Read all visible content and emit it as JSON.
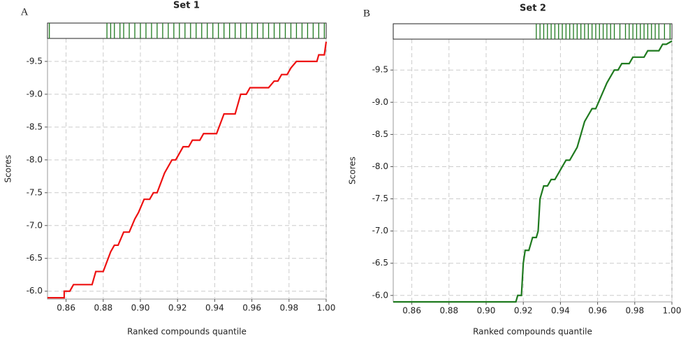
{
  "chart_data": [
    {
      "type": "line",
      "panel_label": "A",
      "title": "Set 1",
      "x_label": "Ranked compounds quantile",
      "y_label": "Scores",
      "color": "#ee1111",
      "rug_color": "#1f7a1f",
      "grid": true,
      "xlim": [
        0.85,
        1.0
      ],
      "ylim": [
        -5.88,
        -9.85
      ],
      "xticks": [
        0.86,
        0.88,
        {
          "value": 0.9,
          "label": "0.90"
        },
        0.92,
        0.94,
        0.96,
        0.98,
        {
          "value": 1,
          "label": "1.00"
        }
      ],
      "yticks": [
        {
          "value": -6,
          "label": "-6.0"
        },
        -6.5,
        {
          "value": -7,
          "label": "-7.0"
        },
        -7.5,
        {
          "value": -8,
          "label": "-8.0"
        },
        -8.5,
        {
          "value": -9,
          "label": "-9.0"
        },
        -9.5
      ],
      "x": [
        0.85,
        0.859,
        0.859,
        0.862,
        0.864,
        0.874,
        0.876,
        0.88,
        0.884,
        0.886,
        0.888,
        0.891,
        0.894,
        0.897,
        0.899,
        0.902,
        0.905,
        0.907,
        0.909,
        0.913,
        0.917,
        0.919,
        0.921,
        0.923,
        0.926,
        0.928,
        0.932,
        0.934,
        0.941,
        0.945,
        0.951,
        0.954,
        0.957,
        0.959,
        0.969,
        0.972,
        0.974,
        0.976,
        0.979,
        0.981,
        0.984,
        0.995,
        0.996,
        0.999,
        1.0
      ],
      "values": [
        -5.9,
        -5.9,
        -6.0,
        -6.0,
        -6.1,
        -6.1,
        -6.3,
        -6.3,
        -6.6,
        -6.7,
        -6.7,
        -6.9,
        -6.9,
        -7.1,
        -7.2,
        -7.4,
        -7.4,
        -7.5,
        -7.5,
        -7.8,
        -8.0,
        -8.0,
        -8.1,
        -8.2,
        -8.2,
        -8.3,
        -8.3,
        -8.4,
        -8.4,
        -8.7,
        -8.7,
        -9.0,
        -9.0,
        -9.1,
        -9.1,
        -9.2,
        -9.2,
        -9.3,
        -9.3,
        -9.4,
        -9.5,
        -9.5,
        -9.6,
        -9.6,
        -9.8
      ],
      "rug": [
        0.851,
        0.882,
        0.884,
        0.886,
        0.889,
        0.891,
        0.894,
        0.897,
        0.9,
        0.903,
        0.906,
        0.909,
        0.912,
        0.915,
        0.918,
        0.921,
        0.924,
        0.927,
        0.93,
        0.933,
        0.936,
        0.939,
        0.942,
        0.945,
        0.948,
        0.951,
        0.954,
        0.957,
        0.96,
        0.963,
        0.966,
        0.969,
        0.972,
        0.975,
        0.978,
        0.981,
        0.984,
        0.987,
        0.99,
        0.993,
        0.996,
        0.999
      ]
    },
    {
      "type": "line",
      "panel_label": "B",
      "title": "Set 2",
      "x_label": "Ranked compounds quantile",
      "y_label": "Scores",
      "color": "#1f7a1f",
      "rug_color": "#1f7a1f",
      "grid": true,
      "xlim": [
        0.85,
        1.0
      ],
      "ylim": [
        -5.9,
        -9.98
      ],
      "xticks": [
        0.86,
        0.88,
        {
          "value": 0.9,
          "label": "0.90"
        },
        0.92,
        0.94,
        0.96,
        0.98,
        {
          "value": 1,
          "label": "1.00"
        }
      ],
      "yticks": [
        {
          "value": -6,
          "label": "-6.0"
        },
        -6.5,
        {
          "value": -7,
          "label": "-7.0"
        },
        -7.5,
        {
          "value": -8,
          "label": "-8.0"
        },
        -8.5,
        {
          "value": -9,
          "label": "-9.0"
        },
        -9.5
      ],
      "x": [
        0.85,
        0.916,
        0.917,
        0.919,
        0.92,
        0.921,
        0.923,
        0.925,
        0.927,
        0.928,
        0.929,
        0.931,
        0.933,
        0.935,
        0.937,
        0.939,
        0.941,
        0.943,
        0.945,
        0.947,
        0.949,
        0.951,
        0.953,
        0.955,
        0.957,
        0.959,
        0.962,
        0.965,
        0.967,
        0.969,
        0.971,
        0.973,
        0.977,
        0.979,
        0.985,
        0.987,
        0.993,
        0.995,
        0.997,
        1.0
      ],
      "values": [
        -5.9,
        -5.9,
        -6.0,
        -6.0,
        -6.5,
        -6.7,
        -6.7,
        -6.9,
        -6.9,
        -7.0,
        -7.5,
        -7.7,
        -7.7,
        -7.8,
        -7.8,
        -7.9,
        -8.0,
        -8.1,
        -8.1,
        -8.2,
        -8.3,
        -8.5,
        -8.7,
        -8.8,
        -8.9,
        -8.9,
        -9.1,
        -9.3,
        -9.4,
        -9.5,
        -9.5,
        -9.6,
        -9.6,
        -9.7,
        -9.7,
        -9.8,
        -9.8,
        -9.9,
        -9.9,
        -9.95
      ],
      "rug": [
        0.927,
        0.929,
        0.931,
        0.933,
        0.935,
        0.937,
        0.939,
        0.941,
        0.943,
        0.945,
        0.947,
        0.949,
        0.951,
        0.953,
        0.955,
        0.957,
        0.959,
        0.961,
        0.963,
        0.965,
        0.967,
        0.969,
        0.972,
        0.975,
        0.977,
        0.979,
        0.981,
        0.983,
        0.985,
        0.987,
        0.989,
        0.991,
        0.993,
        0.996,
        0.999
      ]
    }
  ]
}
